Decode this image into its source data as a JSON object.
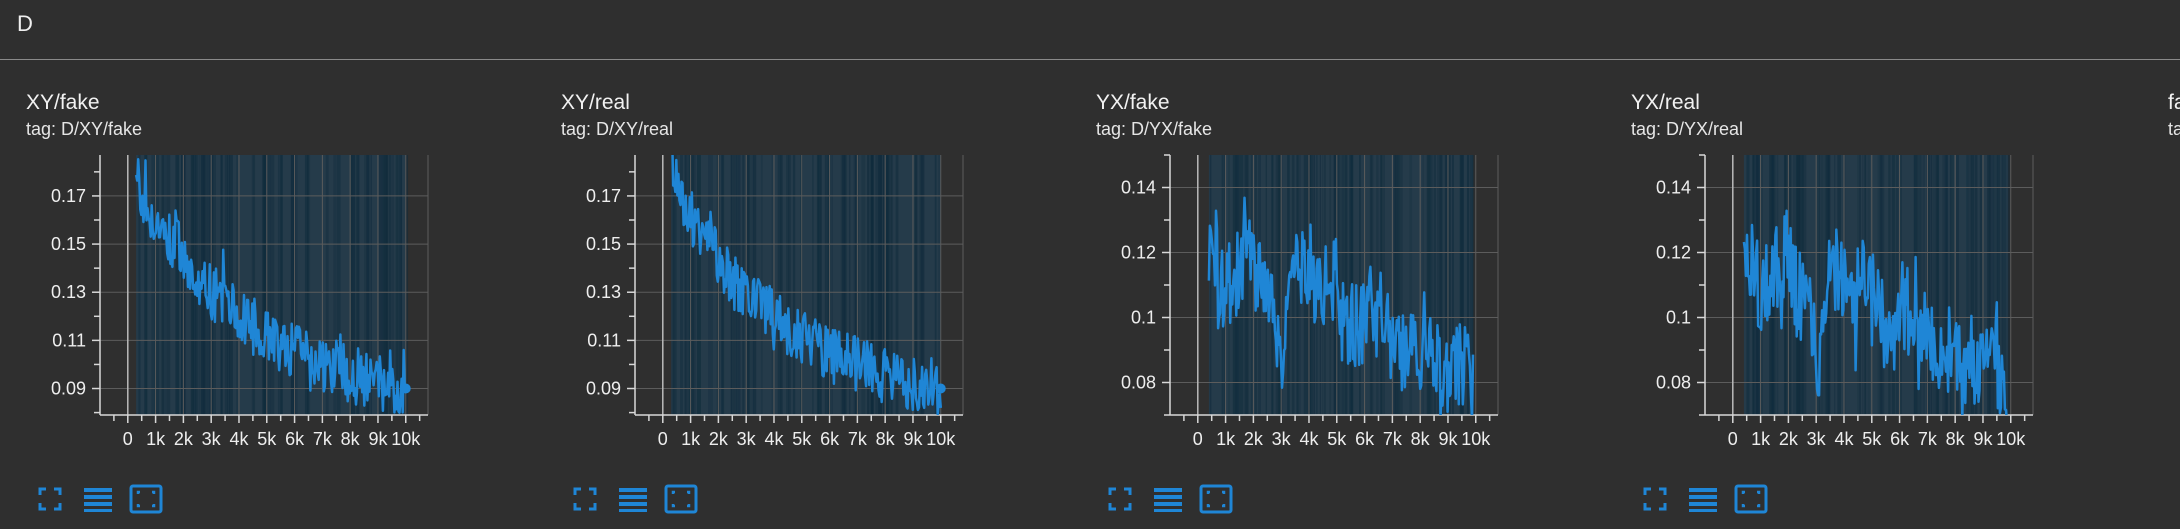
{
  "group": {
    "title": "D"
  },
  "toolbar_icons": [
    "fullscreen-icon",
    "toggle-log-scale-icon",
    "fit-domain-icon"
  ],
  "accent_color": "#1f86d6",
  "chart_data": [
    {
      "type": "line",
      "title": "XY/fake",
      "tag": "tag: D/XY/fake",
      "xlim": [
        -1000,
        10800
      ],
      "ylim": [
        0.079,
        0.187
      ],
      "xticks": [
        0,
        1000,
        2000,
        3000,
        4000,
        5000,
        6000,
        7000,
        8000,
        9000,
        10000
      ],
      "xtick_labels": [
        "0",
        "1k",
        "2k",
        "3k",
        "4k",
        "5k",
        "6k",
        "7k",
        "8k",
        "9k",
        "10k"
      ],
      "yticks": [
        0.09,
        0.11,
        0.13,
        0.15,
        0.17
      ],
      "ytick_labels": [
        "0.09",
        "0.11",
        "0.13",
        "0.15",
        "0.17"
      ],
      "yminor": [
        0.08,
        0.1,
        0.12,
        0.14,
        0.16,
        0.18
      ],
      "grid": true,
      "series": [
        {
          "x": [
            300,
            600,
            900,
            1200,
            1500,
            1800,
            2100,
            2400,
            2700,
            3000,
            3300,
            3600,
            3900,
            4200,
            4500,
            4800,
            5100,
            5400,
            5700,
            6000,
            6300,
            6600,
            6900,
            7200,
            7500,
            7800,
            8100,
            8400,
            8700,
            9000,
            9300,
            9600,
            10000
          ],
          "y": [
            0.185,
            0.165,
            0.158,
            0.162,
            0.152,
            0.148,
            0.142,
            0.138,
            0.132,
            0.13,
            0.128,
            0.125,
            0.12,
            0.118,
            0.116,
            0.114,
            0.112,
            0.108,
            0.106,
            0.105,
            0.103,
            0.102,
            0.1,
            0.099,
            0.098,
            0.097,
            0.096,
            0.094,
            0.093,
            0.092,
            0.091,
            0.09,
            0.09
          ],
          "noise": 0.012,
          "end_point": true
        }
      ]
    },
    {
      "type": "line",
      "title": "XY/real",
      "tag": "tag: D/XY/real",
      "xlim": [
        -1000,
        10800
      ],
      "ylim": [
        0.079,
        0.187
      ],
      "xticks": [
        0,
        1000,
        2000,
        3000,
        4000,
        5000,
        6000,
        7000,
        8000,
        9000,
        10000
      ],
      "xtick_labels": [
        "0",
        "1k",
        "2k",
        "3k",
        "4k",
        "5k",
        "6k",
        "7k",
        "8k",
        "9k",
        "10k"
      ],
      "yticks": [
        0.09,
        0.11,
        0.13,
        0.15,
        0.17
      ],
      "ytick_labels": [
        "0.09",
        "0.11",
        "0.13",
        "0.15",
        "0.17"
      ],
      "yminor": [
        0.08,
        0.1,
        0.12,
        0.14,
        0.16,
        0.18
      ],
      "grid": true,
      "series": [
        {
          "x": [
            300,
            600,
            900,
            1200,
            1500,
            1800,
            2100,
            2400,
            2700,
            3000,
            3300,
            3600,
            3900,
            4200,
            4500,
            4800,
            5100,
            5400,
            5700,
            6000,
            6300,
            6600,
            6900,
            7200,
            7500,
            7800,
            8100,
            8400,
            8700,
            9000,
            9300,
            9600,
            10000
          ],
          "y": [
            0.186,
            0.166,
            0.159,
            0.161,
            0.151,
            0.147,
            0.143,
            0.137,
            0.133,
            0.129,
            0.127,
            0.124,
            0.121,
            0.117,
            0.115,
            0.113,
            0.111,
            0.109,
            0.107,
            0.104,
            0.103,
            0.101,
            0.1,
            0.099,
            0.098,
            0.096,
            0.095,
            0.094,
            0.093,
            0.092,
            0.091,
            0.09,
            0.09
          ],
          "noise": 0.012,
          "end_point": true
        }
      ]
    },
    {
      "type": "line",
      "title": "YX/fake",
      "tag": "tag: D/YX/fake",
      "xlim": [
        -1000,
        10800
      ],
      "ylim": [
        0.07,
        0.15
      ],
      "xticks": [
        0,
        1000,
        2000,
        3000,
        4000,
        5000,
        6000,
        7000,
        8000,
        9000,
        10000
      ],
      "xtick_labels": [
        "0",
        "1k",
        "2k",
        "3k",
        "4k",
        "5k",
        "6k",
        "7k",
        "8k",
        "9k",
        "10k"
      ],
      "yticks": [
        0.08,
        0.1,
        0.12,
        0.14
      ],
      "ytick_labels": [
        "0.08",
        "0.1",
        "0.12",
        "0.14"
      ],
      "yminor": [
        0.07,
        0.09,
        0.11,
        0.13,
        0.15
      ],
      "grid": true,
      "series": [
        {
          "x": [
            400,
            700,
            1000,
            1300,
            1600,
            1900,
            2200,
            2500,
            2800,
            3100,
            3400,
            3700,
            4000,
            4300,
            4600,
            4900,
            5200,
            5500,
            5800,
            6100,
            6400,
            6700,
            7000,
            7300,
            7600,
            7900,
            8200,
            8500,
            8800,
            9100,
            9400,
            9700,
            9900
          ],
          "y": [
            0.125,
            0.115,
            0.108,
            0.112,
            0.118,
            0.12,
            0.11,
            0.104,
            0.1,
            0.088,
            0.11,
            0.115,
            0.108,
            0.105,
            0.11,
            0.112,
            0.1,
            0.098,
            0.096,
            0.104,
            0.1,
            0.092,
            0.095,
            0.09,
            0.088,
            0.092,
            0.086,
            0.088,
            0.085,
            0.083,
            0.087,
            0.084,
            0.078
          ],
          "noise": 0.014,
          "end_point": false
        }
      ]
    },
    {
      "type": "line",
      "title": "YX/real",
      "tag": "tag: D/YX/real",
      "xlim": [
        -1000,
        10800
      ],
      "ylim": [
        0.07,
        0.15
      ],
      "xticks": [
        0,
        1000,
        2000,
        3000,
        4000,
        5000,
        6000,
        7000,
        8000,
        9000,
        10000
      ],
      "xtick_labels": [
        "0",
        "1k",
        "2k",
        "3k",
        "4k",
        "5k",
        "6k",
        "7k",
        "8k",
        "9k",
        "10k"
      ],
      "yticks": [
        0.08,
        0.1,
        0.12,
        0.14
      ],
      "ytick_labels": [
        "0.08",
        "0.1",
        "0.12",
        "0.14"
      ],
      "yminor": [
        0.07,
        0.09,
        0.11,
        0.13,
        0.15
      ],
      "grid": true,
      "series": [
        {
          "x": [
            400,
            700,
            1000,
            1300,
            1600,
            1900,
            2200,
            2500,
            2800,
            3100,
            3400,
            3700,
            4000,
            4300,
            4600,
            4900,
            5200,
            5500,
            5800,
            6100,
            6400,
            6700,
            7000,
            7300,
            7600,
            7900,
            8200,
            8500,
            8800,
            9100,
            9400,
            9700,
            9900
          ],
          "y": [
            0.126,
            0.116,
            0.107,
            0.113,
            0.117,
            0.121,
            0.109,
            0.105,
            0.099,
            0.089,
            0.111,
            0.114,
            0.109,
            0.104,
            0.111,
            0.111,
            0.101,
            0.097,
            0.097,
            0.103,
            0.101,
            0.091,
            0.096,
            0.089,
            0.089,
            0.091,
            0.087,
            0.087,
            0.086,
            0.082,
            0.088,
            0.083,
            0.079
          ],
          "noise": 0.014,
          "end_point": false
        }
      ]
    },
    {
      "type": "line",
      "title": "fa",
      "tag": "ta"
    }
  ]
}
